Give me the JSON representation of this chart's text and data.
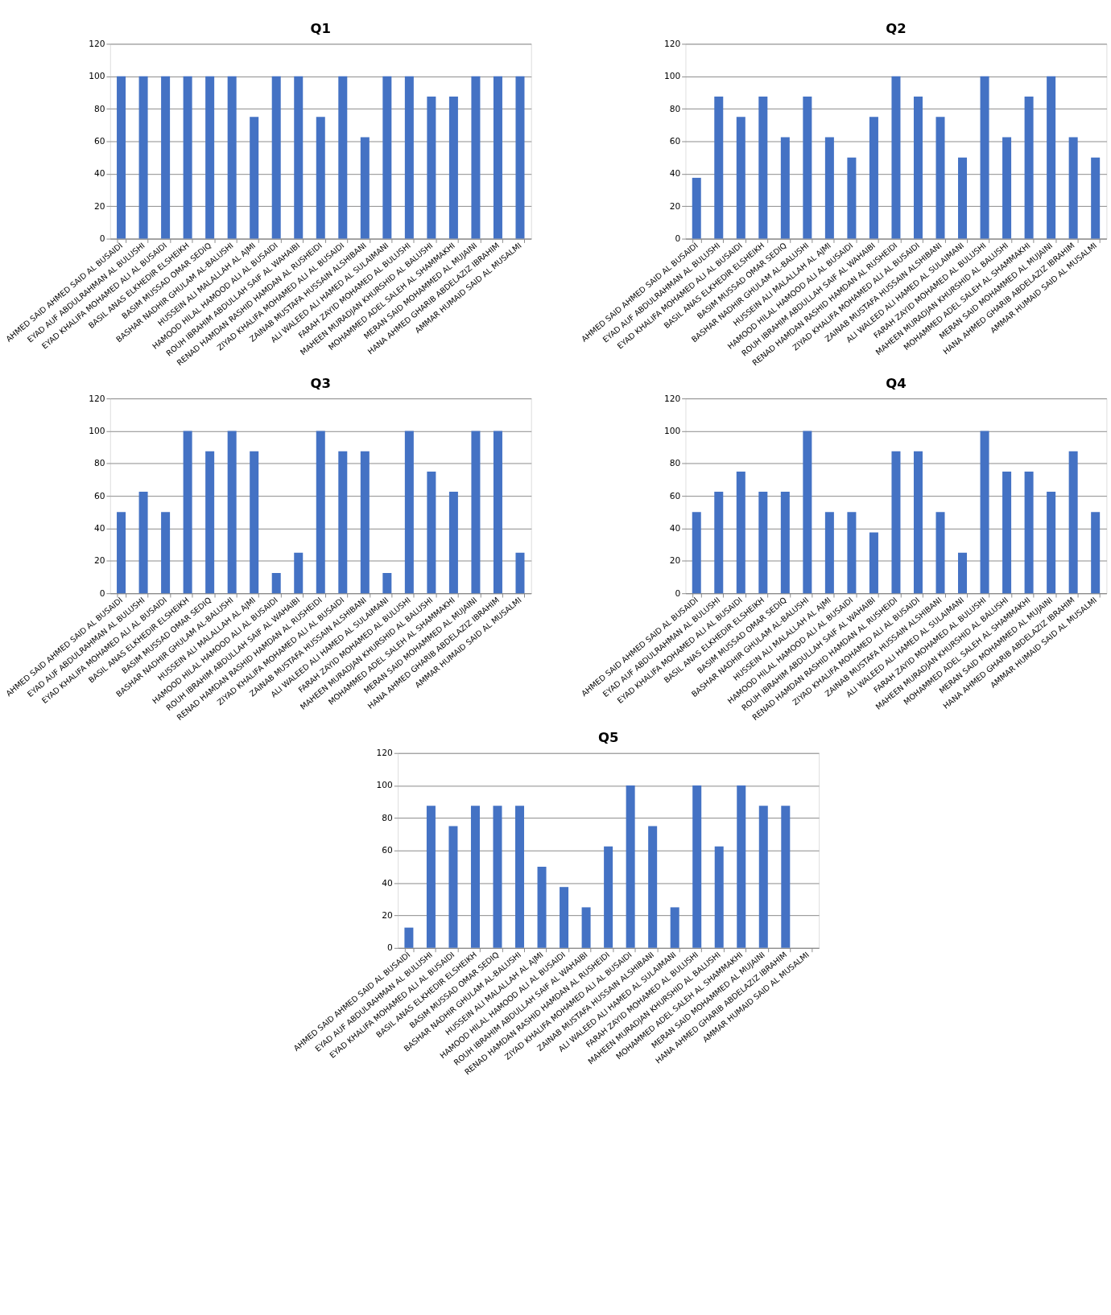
{
  "chart_data": [
    {
      "type": "bar",
      "title": "Q1",
      "categories": [
        "AHMED SAID AHMED SAID AL BUSAIDI",
        "EYAD AUF ABDULRAHMAN AL BULUSHI",
        "EYAD KHALIFA MOHAMED ALI AL BUSAIDI",
        "BASIL ANAS ELKHEDIR ELSHEIKH",
        "BASIM MUSSAD OMAR SEDIQ",
        "BASHAR NADHIR GHULAM AL-BALUSHI",
        "HUSSEIN ALI MALALLAH AL AJMI",
        "HAMOOD HILAL HAMOOD ALI AL BUSAIDI",
        "ROUH IBRAHIM ABDULLAH SAIF AL WAHAIBI",
        "RENAD HAMDAN RASHID HAMDAN AL RUSHEIDI",
        "ZIYAD KHALIFA MOHAMED ALI AL BUSAIDI",
        "ZAINAB MUSTAFA HUSSAIN ALSHIBANI",
        "ALI WALEED ALI HAMED AL SULAIMANI",
        "FARAH ZAYID MOHAMED AL BULUSHI",
        "MAHEEN MURADJAN KHURSHID AL BALUSHI",
        "MOHAMMED ADEL SALEH AL SHAMMAKHI",
        "MERAN SAID MOHAMMED AL MUJAINI",
        "HANA AHMED GHARIB ABDELAZIZ IBRAHIM",
        "AMMAR HUMAID SAID AL MUSALMI"
      ],
      "values": [
        100,
        100,
        100,
        100,
        100,
        100,
        75,
        100,
        100,
        75,
        100,
        62.5,
        100,
        100,
        87.5,
        87.5,
        100,
        100,
        100
      ],
      "color": "#4472c4",
      "ylim": [
        0,
        120
      ],
      "yticks": [
        0,
        20,
        40,
        60,
        80,
        100,
        120
      ],
      "grid": "y"
    },
    {
      "type": "bar",
      "title": "Q2",
      "categories": [
        "AHMED SAID AHMED SAID AL BUSAIDI",
        "EYAD AUF ABDULRAHMAN AL BULUSHI",
        "EYAD KHALIFA MOHAMED ALI AL BUSAIDI",
        "BASIL ANAS ELKHEDIR ELSHEIKH",
        "BASIM MUSSAD OMAR SEDIQ",
        "BASHAR NADHIR GHULAM AL-BALUSHI",
        "HUSSEIN ALI MALALLAH AL AJMI",
        "HAMOOD HILAL HAMOOD ALI AL BUSAIDI",
        "ROUH IBRAHIM ABDULLAH SAIF AL WAHAIBI",
        "RENAD HAMDAN RASHID HAMDAN AL RUSHEIDI",
        "ZIYAD KHALIFA MOHAMED ALI AL BUSAIDI",
        "ZAINAB MUSTAFA HUSSAIN ALSHIBANI",
        "ALI WALEED ALI HAMED AL SULAIMANI",
        "FARAH ZAYID MOHAMED AL BULUSHI",
        "MAHEEN MURADJAN KHURSHID AL BALUSHI",
        "MOHAMMED ADEL SALEH AL SHAMMAKHI",
        "MERAN SAID MOHAMMED AL MUJAINI",
        "HANA AHMED GHARIB ABDELAZIZ IBRAHIM",
        "AMMAR HUMAID SAID AL MUSALMI"
      ],
      "values": [
        37.5,
        87.5,
        75,
        87.5,
        62.5,
        87.5,
        62.5,
        50,
        75,
        100,
        87.5,
        75,
        50,
        100,
        62.5,
        87.5,
        100,
        62.5,
        50
      ],
      "color": "#4472c4",
      "ylim": [
        0,
        120
      ],
      "yticks": [
        0,
        20,
        40,
        60,
        80,
        100,
        120
      ],
      "grid": "y"
    },
    {
      "type": "bar",
      "title": "Q3",
      "categories": [
        "AHMED SAID AHMED SAID AL BUSAIDI",
        "EYAD AUF ABDULRAHMAN AL BULUSHI",
        "EYAD KHALIFA MOHAMED ALI AL BUSAIDI",
        "BASIL ANAS ELKHEDIR ELSHEIKH",
        "BASIM MUSSAD OMAR SEDIQ",
        "BASHAR NADHIR GHULAM AL-BALUSHI",
        "HUSSEIN ALI MALALLAH AL AJMI",
        "HAMOOD HILAL HAMOOD ALI AL BUSAIDI",
        "ROUH IBRAHIM ABDULLAH SAIF AL WAHAIBI",
        "RENAD HAMDAN RASHID HAMDAN AL RUSHEIDI",
        "ZIYAD KHALIFA MOHAMED ALI AL BUSAIDI",
        "ZAINAB MUSTAFA HUSSAIN ALSHIBANI",
        "ALI WALEED ALI HAMED AL SULAIMANI",
        "FARAH ZAYID MOHAMED AL BULUSHI",
        "MAHEEN MURADJAN KHURSHID AL BALUSHI",
        "MOHAMMED ADEL SALEH AL SHAMMAKHI",
        "MERAN SAID MOHAMMED AL MUJAINI",
        "HANA AHMED GHARIB ABDELAZIZ IBRAHIM",
        "AMMAR HUMAID SAID AL MUSALMI"
      ],
      "values": [
        50,
        62.5,
        50,
        100,
        87.5,
        100,
        87.5,
        12.5,
        25,
        100,
        87.5,
        87.5,
        12.5,
        100,
        75,
        62.5,
        100,
        100,
        25
      ],
      "color": "#4472c4",
      "ylim": [
        0,
        120
      ],
      "yticks": [
        0,
        20,
        40,
        60,
        80,
        100,
        120
      ],
      "grid": "y"
    },
    {
      "type": "bar",
      "title": "Q4",
      "categories": [
        "AHMED SAID AHMED SAID AL BUSAIDI",
        "EYAD AUF ABDULRAHMAN AL BULUSHI",
        "EYAD KHALIFA MOHAMED ALI AL BUSAIDI",
        "BASIL ANAS ELKHEDIR ELSHEIKH",
        "BASIM MUSSAD OMAR SEDIQ",
        "BASHAR NADHIR GHULAM AL-BALUSHI",
        "HUSSEIN ALI MALALLAH AL AJMI",
        "HAMOOD HILAL HAMOOD ALI AL BUSAIDI",
        "ROUH IBRAHIM ABDULLAH SAIF AL WAHAIBI",
        "RENAD HAMDAN RASHID HAMDAN AL RUSHEIDI",
        "ZIYAD KHALIFA MOHAMED ALI AL BUSAIDI",
        "ZAINAB MUSTAFA HUSSAIN ALSHIBANI",
        "ALI WALEED ALI HAMED AL SULAIMANI",
        "FARAH ZAYID MOHAMED AL BULUSHI",
        "MAHEEN MURADJAN KHURSHID AL BALUSHI",
        "MOHAMMED ADEL SALEH AL SHAMMAKHI",
        "MERAN SAID MOHAMMED AL MUJAINI",
        "HANA AHMED GHARIB ABDELAZIZ IBRAHIM",
        "AMMAR HUMAID SAID AL MUSALMI"
      ],
      "values": [
        50,
        62.5,
        75,
        62.5,
        62.5,
        100,
        50,
        50,
        37.5,
        87.5,
        87.5,
        50,
        25,
        100,
        75,
        75,
        62.5,
        87.5,
        50
      ],
      "color": "#4472c4",
      "ylim": [
        0,
        120
      ],
      "yticks": [
        0,
        20,
        40,
        60,
        80,
        100,
        120
      ],
      "grid": "y"
    },
    {
      "type": "bar",
      "title": "Q5",
      "categories": [
        "AHMED SAID AHMED SAID AL BUSAIDI",
        "EYAD AUF ABDULRAHMAN AL BULUSHI",
        "EYAD KHALIFA MOHAMED ALI AL BUSAIDI",
        "BASIL ANAS ELKHEDIR ELSHEIKH",
        "BASIM MUSSAD OMAR SEDIQ",
        "BASHAR NADHIR GHULAM AL-BALUSHI",
        "HUSSEIN ALI MALALLAH AL AJMI",
        "HAMOOD HILAL HAMOOD ALI AL BUSAIDI",
        "ROUH IBRAHIM ABDULLAH SAIF AL WAHAIBI",
        "RENAD HAMDAN RASHID HAMDAN AL RUSHEIDI",
        "ZIYAD KHALIFA MOHAMED ALI AL BUSAIDI",
        "ZAINAB MUSTAFA HUSSAIN ALSHIBANI",
        "ALI WALEED ALI HAMED AL SULAIMANI",
        "FARAH ZAYID MOHAMED AL BULUSHI",
        "MAHEEN MURADJAN KHURSHID AL BALUSHI",
        "MOHAMMED ADEL SALEH AL SHAMMAKHI",
        "MERAN SAID MOHAMMED AL MUJAINI",
        "HANA AHMED GHARIB ABDELAZIZ IBRAHIM",
        "AMMAR HUMAID SAID AL MUSALMI"
      ],
      "values": [
        12.5,
        87.5,
        75,
        87.5,
        87.5,
        87.5,
        50,
        37.5,
        25,
        62.5,
        100,
        75,
        25,
        100,
        62.5,
        100,
        87.5,
        87.5,
        null
      ],
      "color": "#4472c4",
      "ylim": [
        0,
        120
      ],
      "yticks": [
        0,
        20,
        40,
        60,
        80,
        100,
        120
      ],
      "grid": "y"
    }
  ]
}
